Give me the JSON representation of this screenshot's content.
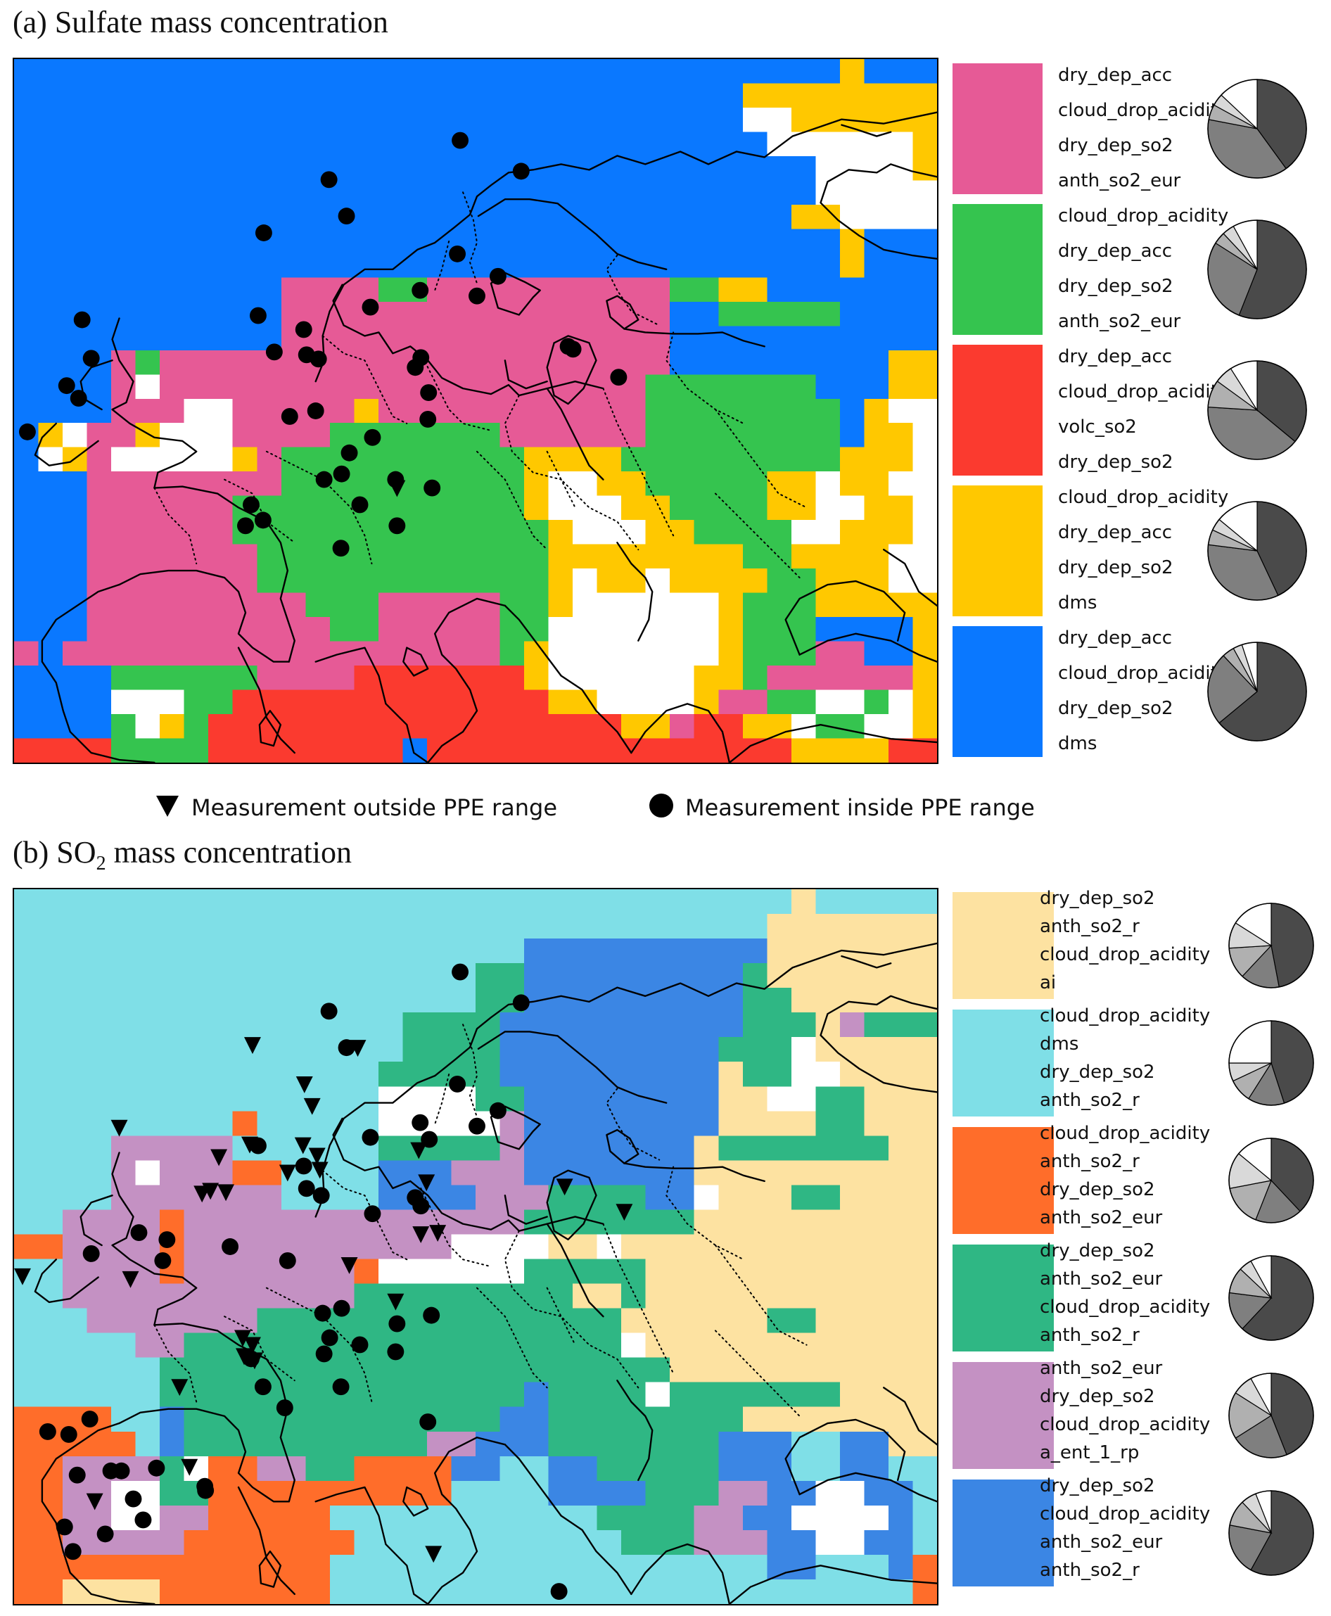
{
  "panel_a": {
    "title": "(a) Sulfate mass concentration",
    "colors": {
      "pink": "#e65a96",
      "green": "#35c44f",
      "red": "#fb3a2f",
      "yellow": "#ffc800",
      "blue": "#0a78ff",
      "white": "#ffffff"
    },
    "legend": [
      {
        "color": "#e65a96",
        "labels": [
          "dry_dep_acc",
          "cloud_drop_acidity",
          "dry_dep_so2",
          "anth_so2_eur"
        ],
        "pie_fractions": [
          0.4,
          0.38,
          0.05,
          0.04,
          0.13
        ]
      },
      {
        "color": "#35c44f",
        "labels": [
          "cloud_drop_acidity",
          "dry_dep_acc",
          "dry_dep_so2",
          "anth_so2_eur"
        ],
        "pie_fractions": [
          0.56,
          0.28,
          0.04,
          0.04,
          0.08
        ]
      },
      {
        "color": "#fb3a2f",
        "labels": [
          "dry_dep_acc",
          "cloud_drop_acidity",
          "volc_so2",
          "dry_dep_so2"
        ],
        "pie_fractions": [
          0.36,
          0.4,
          0.09,
          0.06,
          0.09
        ]
      },
      {
        "color": "#ffc800",
        "labels": [
          "cloud_drop_acidity",
          "dry_dep_acc",
          "dry_dep_so2",
          "dms"
        ],
        "pie_fractions": [
          0.43,
          0.34,
          0.05,
          0.04,
          0.14
        ]
      },
      {
        "color": "#0a78ff",
        "labels": [
          "dry_dep_acc",
          "cloud_drop_acidity",
          "dry_dep_so2",
          "dms"
        ],
        "pie_fractions": [
          0.64,
          0.24,
          0.04,
          0.03,
          0.05
        ]
      }
    ]
  },
  "marker_legend": {
    "outside": "Measurement outside PPE range",
    "inside": "Measurement inside PPE range"
  },
  "panel_b": {
    "title_prefix": "(b) SO",
    "title_sub": "2",
    "title_suffix": " mass concentration",
    "colors": {
      "tan": "#fde2a1",
      "cyan": "#7fdfe7",
      "orange": "#ff6d2a",
      "teal": "#2fb784",
      "mauve": "#c491c3",
      "blue": "#3b86e4",
      "white": "#ffffff"
    },
    "legend": [
      {
        "color": "#fde2a1",
        "labels": [
          "dry_dep_so2",
          "anth_so2_r",
          "cloud_drop_acidity",
          "ai"
        ],
        "pie_fractions": [
          0.47,
          0.15,
          0.12,
          0.1,
          0.16
        ]
      },
      {
        "color": "#7fdfe7",
        "labels": [
          "cloud_drop_acidity",
          "dms",
          "dry_dep_so2",
          "anth_so2_r"
        ],
        "pie_fractions": [
          0.45,
          0.14,
          0.09,
          0.07,
          0.25
        ]
      },
      {
        "color": "#ff6d2a",
        "labels": [
          "cloud_drop_acidity",
          "anth_so2_r",
          "dry_dep_so2",
          "anth_so2_eur"
        ],
        "pie_fractions": [
          0.38,
          0.18,
          0.16,
          0.14,
          0.14
        ]
      },
      {
        "color": "#2fb784",
        "labels": [
          "dry_dep_so2",
          "anth_so2_eur",
          "cloud_drop_acidity",
          "anth_so2_r"
        ],
        "pie_fractions": [
          0.62,
          0.15,
          0.1,
          0.05,
          0.08
        ]
      },
      {
        "color": "#c491c3",
        "labels": [
          "anth_so2_eur",
          "dry_dep_so2",
          "cloud_drop_acidity",
          "a_ent_1_rp"
        ],
        "pie_fractions": [
          0.44,
          0.22,
          0.18,
          0.08,
          0.08
        ]
      },
      {
        "color": "#3b86e4",
        "labels": [
          "dry_dep_so2",
          "cloud_drop_acidity",
          "anth_so2_eur",
          "anth_so2_r"
        ],
        "pie_fractions": [
          0.58,
          0.2,
          0.1,
          0.06,
          0.06
        ]
      }
    ]
  }
}
